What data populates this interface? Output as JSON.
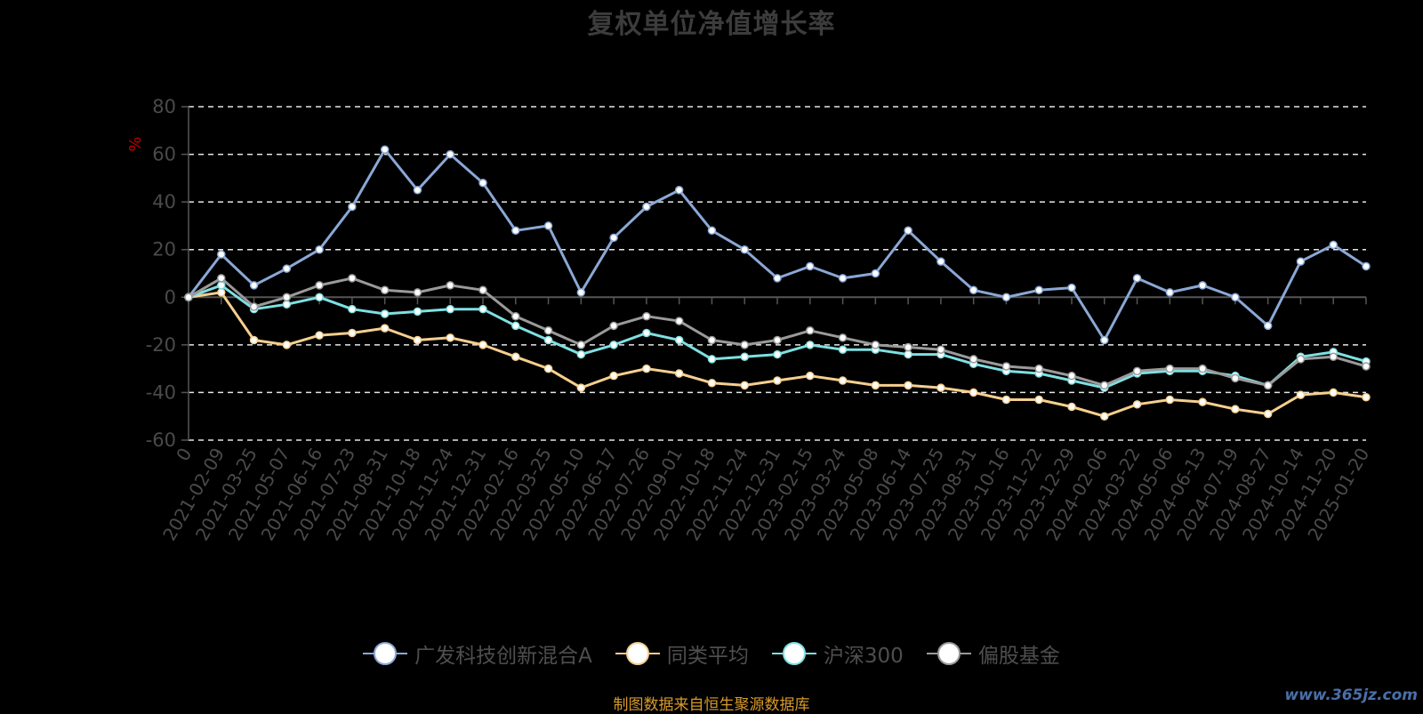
{
  "title": "复权单位净值增长率",
  "source_note": "制图数据来自恒生聚源数据库",
  "watermark": "www.365jz.com",
  "chart_data": {
    "type": "line",
    "title": "复权单位净值增长率",
    "xlabel": "",
    "ylabel": "%",
    "ylim": [
      -60,
      80
    ],
    "yticks": [
      80,
      60,
      40,
      20,
      0,
      -20,
      -40,
      -60
    ],
    "grid": "dashed horizontal",
    "legend_position": "bottom",
    "x": [
      "0",
      "2021-02-09",
      "2021-03-25",
      "2021-05-07",
      "2021-06-16",
      "2021-07-23",
      "2021-08-31",
      "2021-10-18",
      "2021-11-24",
      "2021-12-31",
      "2022-02-16",
      "2022-03-25",
      "2022-05-10",
      "2022-06-17",
      "2022-07-26",
      "2022-09-01",
      "2022-10-18",
      "2022-11-24",
      "2022-12-31",
      "2023-02-15",
      "2023-03-24",
      "2023-05-08",
      "2023-06-14",
      "2023-07-25",
      "2023-08-31",
      "2023-10-16",
      "2023-11-22",
      "2023-12-29",
      "2024-02-06",
      "2024-03-22",
      "2024-05-06",
      "2024-06-13",
      "2024-07-19",
      "2024-08-27",
      "2024-10-14",
      "2024-11-20",
      "2025-01-20"
    ],
    "series": [
      {
        "name": "广发科技创新混合A",
        "color": "#8aa8d6",
        "values": [
          0,
          18,
          5,
          12,
          20,
          38,
          62,
          45,
          60,
          48,
          28,
          30,
          2,
          25,
          38,
          45,
          28,
          20,
          8,
          13,
          8,
          10,
          28,
          15,
          3,
          0,
          3,
          4,
          -18,
          8,
          2,
          5,
          0,
          -12,
          15,
          22,
          13
        ]
      },
      {
        "name": "同类平均",
        "color": "#f6cf8e",
        "values": [
          0,
          2,
          -18,
          -20,
          -16,
          -15,
          -13,
          -18,
          -17,
          -20,
          -25,
          -30,
          -38,
          -33,
          -30,
          -32,
          -36,
          -37,
          -35,
          -33,
          -35,
          -37,
          -37,
          -38,
          -40,
          -43,
          -43,
          -46,
          -50,
          -45,
          -43,
          -44,
          -47,
          -49,
          -41,
          -40,
          -42
        ]
      },
      {
        "name": "沪深300",
        "color": "#7ee0e3",
        "values": [
          0,
          5,
          -5,
          -3,
          0,
          -5,
          -7,
          -6,
          -5,
          -5,
          -12,
          -18,
          -24,
          -20,
          -15,
          -18,
          -26,
          -25,
          -24,
          -20,
          -22,
          -22,
          -24,
          -24,
          -28,
          -31,
          -32,
          -35,
          -38,
          -32,
          -31,
          -31,
          -33,
          -37,
          -25,
          -23,
          -27
        ]
      },
      {
        "name": "偏股基金",
        "color": "#9a9a9a",
        "values": [
          0,
          8,
          -4,
          0,
          5,
          8,
          3,
          2,
          5,
          3,
          -8,
          -14,
          -20,
          -12,
          -8,
          -10,
          -18,
          -20,
          -18,
          -14,
          -17,
          -20,
          -21,
          -22,
          -26,
          -29,
          -30,
          -33,
          -37,
          -31,
          -30,
          -30,
          -34,
          -37,
          -26,
          -25,
          -29
        ]
      }
    ]
  }
}
